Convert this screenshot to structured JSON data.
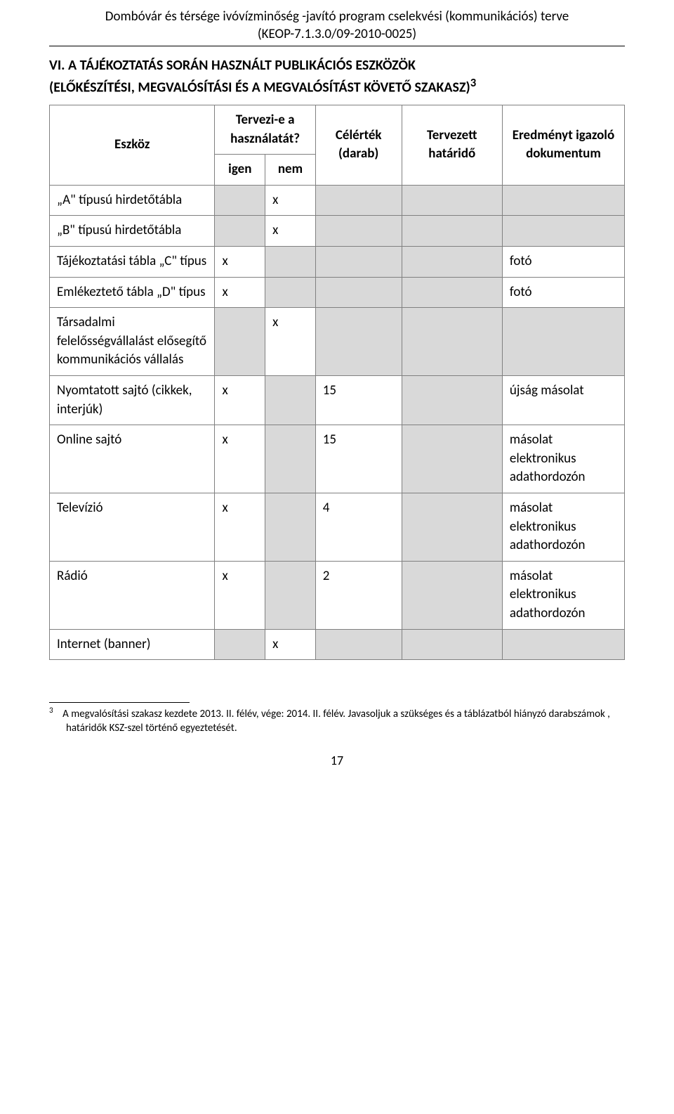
{
  "header": {
    "line1": "Dombóvár és térsége ivóvízminőség -javító program cselekvési (kommunikációs) terve",
    "line2": "(KEOP-7.1.3.0/09-2010-0025)"
  },
  "section_title_line1": "VI. A TÁJÉKOZTATÁS SORÁN HASZNÁLT PUBLIKÁCIÓS ESZKÖZÖK",
  "section_title_line2": "(ELŐKÉSZÍTÉSI, MEGVALÓSÍTÁSI ÉS A MEGVALÓSÍTÁST KÖVETŐ SZAKASZ)",
  "section_title_sup": "3",
  "columns": {
    "tool": "Eszköz",
    "plan": "Tervezi-e a használatát?",
    "yes": "igen",
    "no": "nem",
    "target": "Célérték",
    "target_unit": "(darab)",
    "deadline": "Tervezett határidő",
    "result": "Eredményt igazoló dokumentum"
  },
  "rows": [
    {
      "tool": "„A\" típusú hirdetőtábla",
      "yes": "",
      "no": "x",
      "target": "",
      "deadline": "",
      "result": ""
    },
    {
      "tool": "„B\" típusú hirdetőtábla",
      "yes": "",
      "no": "x",
      "target": "",
      "deadline": "",
      "result": ""
    },
    {
      "tool": "Tájékoztatási tábla „C\" típus",
      "yes": "x",
      "no": "",
      "target": "",
      "deadline": "",
      "result": "fotó"
    },
    {
      "tool": "Emlékeztető tábla „D\" típus",
      "yes": "x",
      "no": "",
      "target": "",
      "deadline": "",
      "result": "fotó"
    },
    {
      "tool": "Társadalmi felelősségvállalást elősegítő kommunikációs vállalás",
      "yes": "",
      "no": "x",
      "target": "",
      "deadline": "",
      "result": ""
    },
    {
      "tool": "Nyomtatott sajtó (cikkek, interjúk)",
      "yes": "x",
      "no": "",
      "target": "15",
      "deadline": "",
      "result": "újság másolat"
    },
    {
      "tool": "Online sajtó",
      "yes": "x",
      "no": "",
      "target": "15",
      "deadline": "",
      "result": "másolat elektronikus adathordozón"
    },
    {
      "tool": "Televízió",
      "yes": "x",
      "no": "",
      "target": "4",
      "deadline": "",
      "result": "másolat elektronikus adathordozón"
    },
    {
      "tool": "Rádió",
      "yes": "x",
      "no": "",
      "target": "2",
      "deadline": "",
      "result": "másolat elektronikus adathordozón"
    },
    {
      "tool": "Internet (banner)",
      "yes": "",
      "no": "x",
      "target": "",
      "deadline": "",
      "result": ""
    }
  ],
  "footnote": {
    "num": "3",
    "text": "A megvalósítási szakasz kezdete 2013. II. félév, vége: 2014. II. félév. Javasoljuk a szükséges és a táblázatból hiányzó darabszámok , határidők KSZ-szel történő egyeztetését."
  },
  "page_number": "17"
}
